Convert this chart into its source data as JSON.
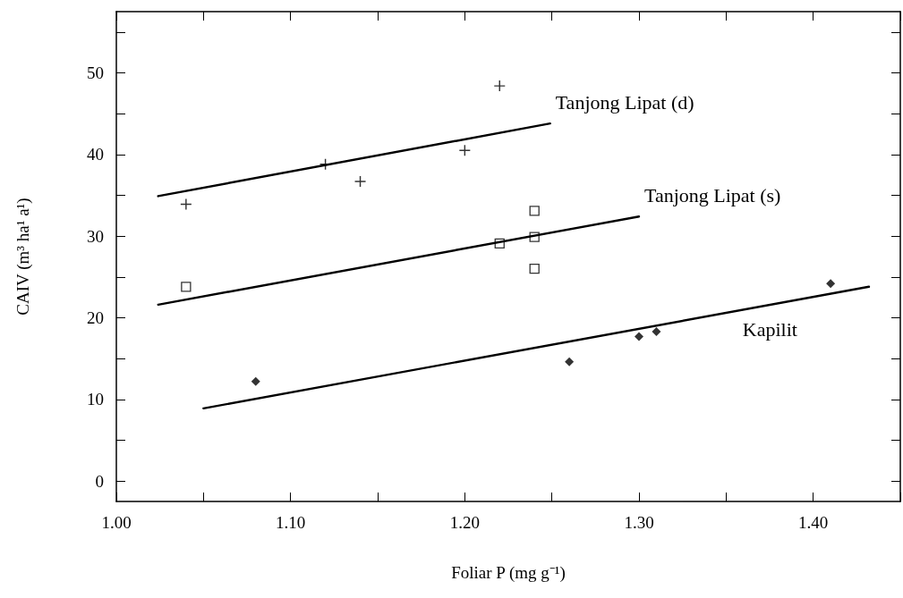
{
  "chart_data": {
    "type": "scatter",
    "xlabel": "Foliar P (mg g⁻¹)",
    "ylabel": "CAIV (m³ ha¹ a¹)",
    "xlim": [
      1.0,
      1.45
    ],
    "xticks": [
      {
        "value": 1.0,
        "label": "1.00"
      },
      {
        "value": 1.05,
        "label": null
      },
      {
        "value": 1.1,
        "label": "1.10"
      },
      {
        "value": 1.15,
        "label": null
      },
      {
        "value": 1.2,
        "label": "1.20"
      },
      {
        "value": 1.25,
        "label": null
      },
      {
        "value": 1.3,
        "label": "1.30"
      },
      {
        "value": 1.35,
        "label": null
      },
      {
        "value": 1.4,
        "label": "1.40"
      },
      {
        "value": 1.45,
        "label": null
      }
    ],
    "ylim": [
      -2.5,
      57.5
    ],
    "yticks": [
      0,
      {
        "value": 5,
        "label": null
      },
      10,
      {
        "value": 15,
        "label": null
      },
      20,
      {
        "value": 25,
        "label": null
      },
      30,
      {
        "value": 35,
        "label": null
      },
      40,
      {
        "value": 45,
        "label": null
      },
      50,
      {
        "value": 55,
        "label": null
      }
    ],
    "grid": false,
    "legend": false,
    "series": [
      {
        "marker": "cross",
        "color": "#000000",
        "x": [
          1.04,
          1.12,
          1.14,
          1.2,
          1.22
        ],
        "values": [
          33.9,
          38.8,
          36.7,
          40.5,
          48.4
        ]
      },
      {
        "marker": "square",
        "color": "#000000",
        "x": [
          1.04,
          1.22,
          1.24,
          1.24,
          1.24
        ],
        "values": [
          23.8,
          29.1,
          33.1,
          29.9,
          26.0
        ]
      },
      {
        "marker": "diamond",
        "color": "#000000",
        "x": [
          1.08,
          1.26,
          1.3,
          1.31,
          1.41
        ],
        "values": [
          12.2,
          14.6,
          17.7,
          18.3,
          24.2
        ]
      },
      {
        "type": "line",
        "name": "Tanjong Lipat (d)",
        "marker": "none",
        "line_style": "solid",
        "color": "#000000",
        "x": [
          1.024,
          1.249
        ],
        "values": [
          34.9,
          43.8
        ]
      },
      {
        "type": "line",
        "name": "Tanjong Lipat (s)",
        "marker": "none",
        "line_style": "solid",
        "color": "#000000",
        "x": [
          1.024,
          1.3
        ],
        "values": [
          21.6,
          32.4
        ]
      },
      {
        "type": "line",
        "name": "Kapilit",
        "marker": "none",
        "line_style": "solid",
        "color": "#000000",
        "x": [
          1.05,
          1.432
        ],
        "values": [
          8.9,
          23.8
        ]
      }
    ]
  }
}
